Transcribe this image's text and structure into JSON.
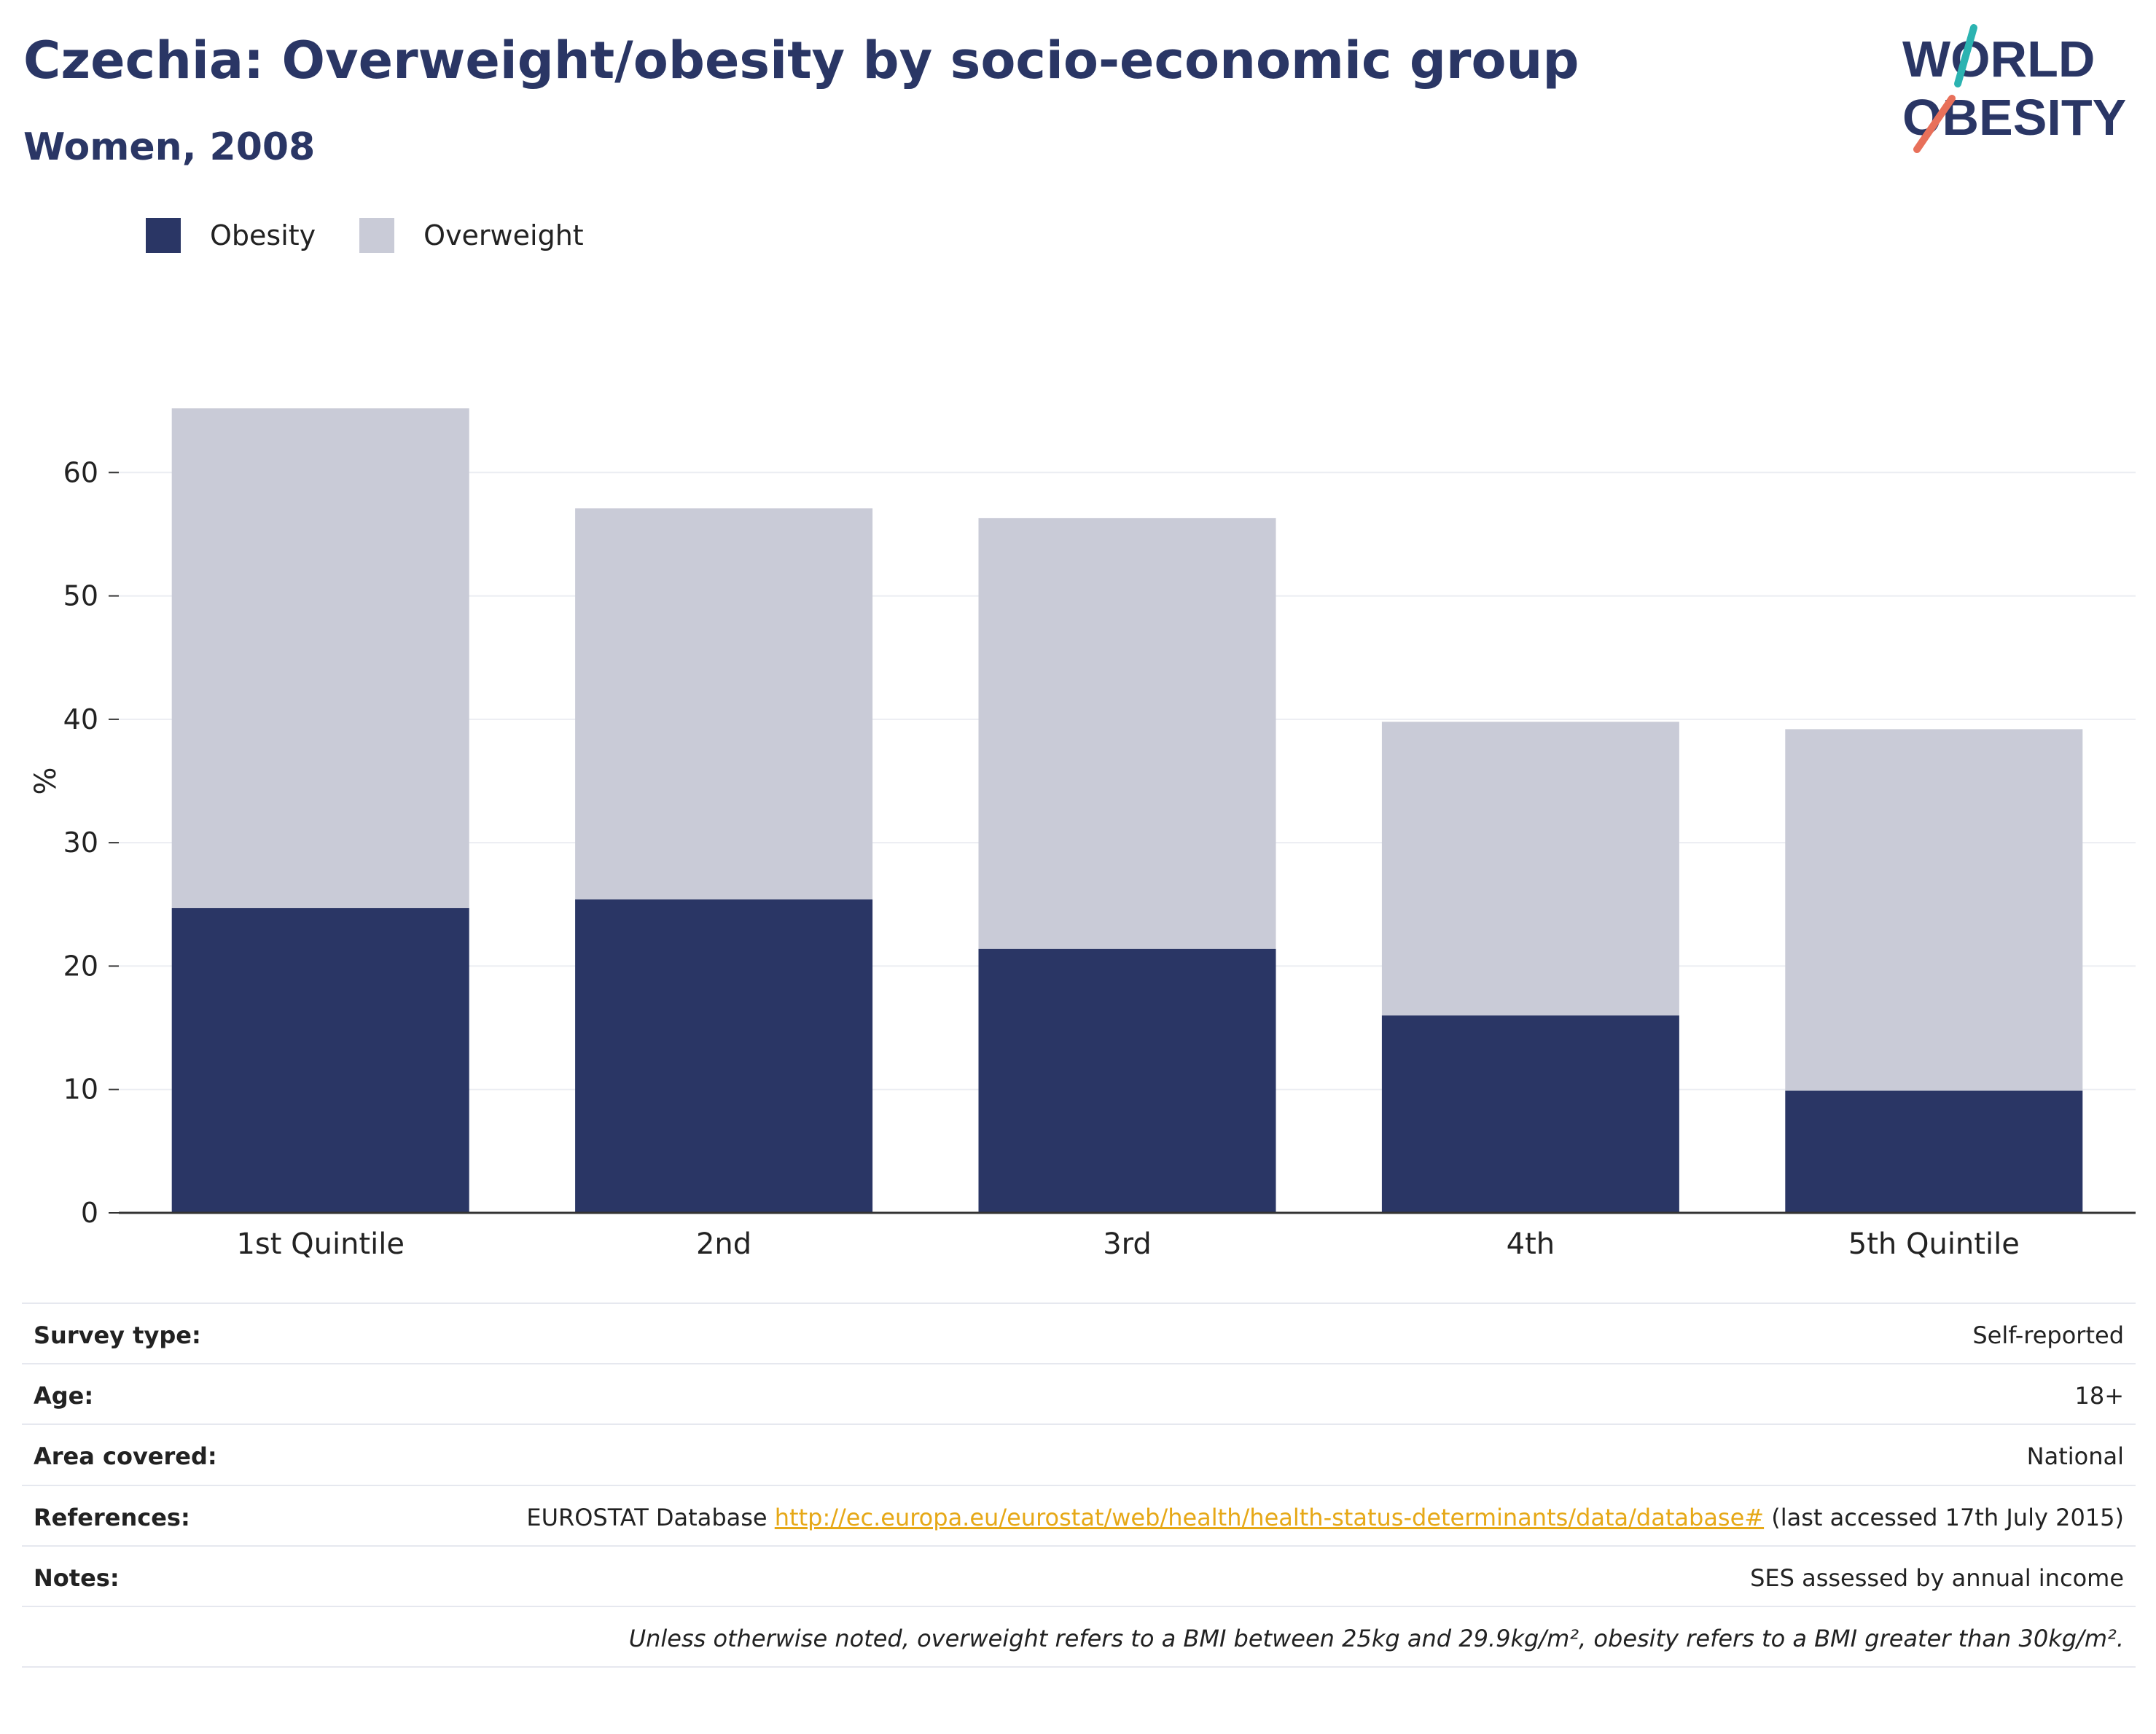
{
  "header": {
    "title": "Czechia: Overweight/obesity by socio-economic group",
    "subtitle": "Women, 2008"
  },
  "logo": {
    "line1": "WORLD",
    "line2": "OBESITY",
    "colors": {
      "text": "#2a3665",
      "slash_top": "#2bb3b1",
      "slash_bottom": "#e8705a"
    }
  },
  "legend": [
    {
      "label": "Obesity",
      "color": "#2a3665"
    },
    {
      "label": "Overweight",
      "color": "#c9cbd7"
    }
  ],
  "chart_data": {
    "type": "bar",
    "stacked": true,
    "categories": [
      "1st Quintile",
      "2nd",
      "3rd",
      "4th",
      "5th Quintile"
    ],
    "series": [
      {
        "name": "Obesity",
        "color": "#2a3665",
        "values": [
          24.7,
          25.4,
          21.4,
          16.0,
          9.9
        ]
      },
      {
        "name": "Overweight",
        "color": "#c9cbd7",
        "values": [
          40.5,
          31.7,
          34.9,
          23.8,
          29.3
        ]
      }
    ],
    "ylabel": "%",
    "xlabel": "",
    "ylim": [
      0,
      70
    ],
    "yticks": [
      0,
      10,
      20,
      30,
      40,
      50,
      60
    ],
    "grid": true,
    "legend_position": "top-left"
  },
  "info": {
    "survey_type": {
      "label": "Survey type:",
      "value": "Self-reported"
    },
    "age": {
      "label": "Age:",
      "value": "18+"
    },
    "area": {
      "label": "Area covered:",
      "value": "National"
    },
    "references": {
      "label": "References:",
      "prefix": "EUROSTAT Database ",
      "link": "http://ec.europa.eu/eurostat/web/health/health-status-determinants/data/database#",
      "suffix": " (last accessed 17th July 2015)"
    },
    "notes": {
      "label": "Notes:",
      "value": "SES assessed by annual income"
    },
    "footnote": "Unless otherwise noted, overweight refers to a BMI between 25kg and 29.9kg/m², obesity refers to a BMI greater than 30kg/m²."
  }
}
